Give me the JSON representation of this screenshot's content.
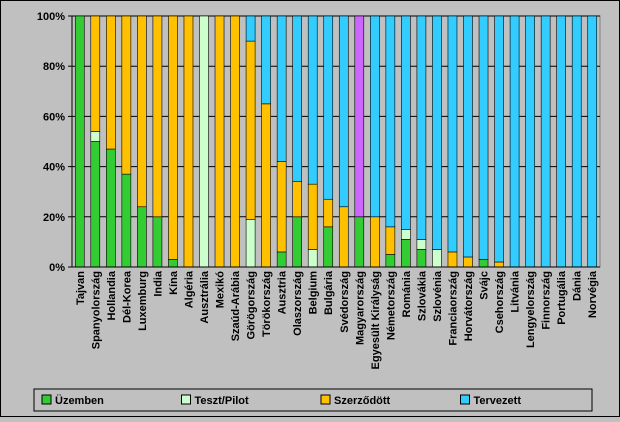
{
  "chart_data": {
    "type": "bar",
    "stacked": "percent",
    "categories": [
      "Tajvan",
      "Spanyolország",
      "Hollandia",
      "Dél-Korea",
      "Luxemburg",
      "India",
      "Kína",
      "Algéria",
      "Ausztrália",
      "Mexikó",
      "Szaúd-Arábia",
      "Görögország",
      "Törökország",
      "Ausztria",
      "Olaszország",
      "Belgium",
      "Bulgária",
      "Svédország",
      "Magyarország",
      "Egyesült Királyság",
      "Németország",
      "Románia",
      "Szlovákia",
      "Szlovénia",
      "Franciaország",
      "Horvátország",
      "Svájc",
      "Csehország",
      "Litvánia",
      "Lengyelország",
      "Finnország",
      "Portugália",
      "Dánia",
      "Norvégia"
    ],
    "series": [
      {
        "name": "Üzemben",
        "color": "#33cc33",
        "values": [
          100,
          50,
          47,
          37,
          24,
          20,
          3,
          0,
          0,
          0,
          0,
          0,
          0,
          6,
          20,
          0,
          16,
          0,
          20,
          0,
          5,
          11,
          7,
          0,
          0,
          0,
          3,
          0,
          0,
          0,
          0,
          0,
          0,
          0
        ]
      },
      {
        "name": "Teszt/Pilot",
        "color": "#ccffcc",
        "values": [
          0,
          4,
          0,
          0,
          0,
          0,
          0,
          0,
          100,
          0,
          0,
          19,
          0,
          0,
          0,
          7,
          0,
          0,
          0,
          0,
          0,
          4,
          4,
          7,
          0,
          0,
          0,
          0,
          0,
          0,
          0,
          0,
          0,
          0
        ]
      },
      {
        "name": "Szerződött",
        "color": "#ffc000",
        "values": [
          0,
          46,
          53,
          63,
          76,
          80,
          97,
          100,
          0,
          100,
          100,
          71,
          65,
          36,
          14,
          26,
          11,
          24,
          0,
          20,
          11,
          0,
          0,
          0,
          6,
          4,
          0,
          2,
          0,
          0,
          0,
          0,
          0,
          0
        ]
      },
      {
        "name": "Tervezett",
        "color": "#33ccff",
        "values": [
          0,
          0,
          0,
          0,
          0,
          0,
          0,
          0,
          0,
          0,
          0,
          10,
          35,
          58,
          66,
          67,
          73,
          76,
          80,
          80,
          84,
          85,
          89,
          93,
          94,
          96,
          97,
          98,
          100,
          100,
          100,
          100,
          100,
          100
        ]
      }
    ],
    "highlight_index": 18,
    "highlight_color": "#cc66ff",
    "yticks": [
      "0%",
      "20%",
      "40%",
      "60%",
      "80%",
      "100%"
    ],
    "ylim": [
      0,
      100
    ],
    "grid": true,
    "legend_position": "bottom"
  }
}
